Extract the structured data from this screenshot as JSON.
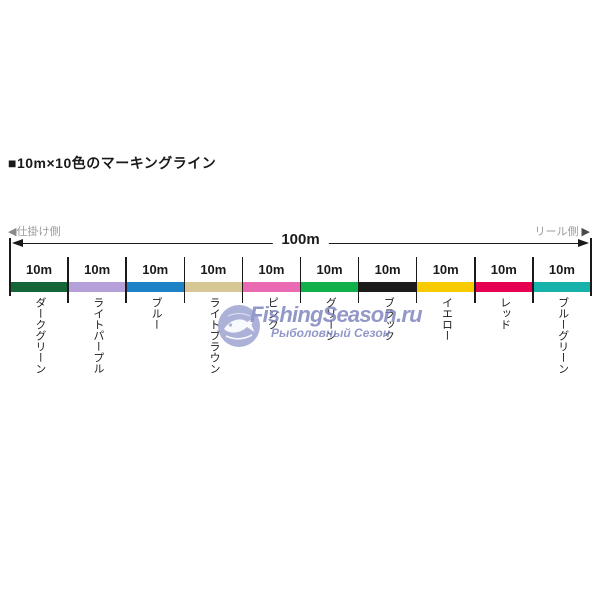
{
  "title": "■10m×10色のマーキングライン",
  "diagram": {
    "left_arrow": "◀",
    "left_side_label": "仕掛け側",
    "right_side_label": "リール側",
    "right_arrow": "▶",
    "total_length_label": "100m",
    "segment_length_label": "10m",
    "line_color": "#1a1a1a",
    "segments": [
      {
        "name": "ダークグリーン",
        "color": "#156539"
      },
      {
        "name": "ライトパープル",
        "color": "#b6a0d9"
      },
      {
        "name": "ブルー",
        "color": "#1d81c5"
      },
      {
        "name": "ライトブラウン",
        "color": "#d6c795"
      },
      {
        "name": "ピンク",
        "color": "#ea69b3"
      },
      {
        "name": "グリーン",
        "color": "#12b04b"
      },
      {
        "name": "ブラック",
        "color": "#1b1b1b"
      },
      {
        "name": "イエロー",
        "color": "#f8ca00"
      },
      {
        "name": "レッド",
        "color": "#e60051"
      },
      {
        "name": "ブルーグリーン",
        "color": "#17b3ab"
      }
    ]
  },
  "watermark": {
    "site_name": "FishingSeason.ru",
    "subtitle": "Рыболовный Сезон",
    "color": "#7b82bd"
  }
}
